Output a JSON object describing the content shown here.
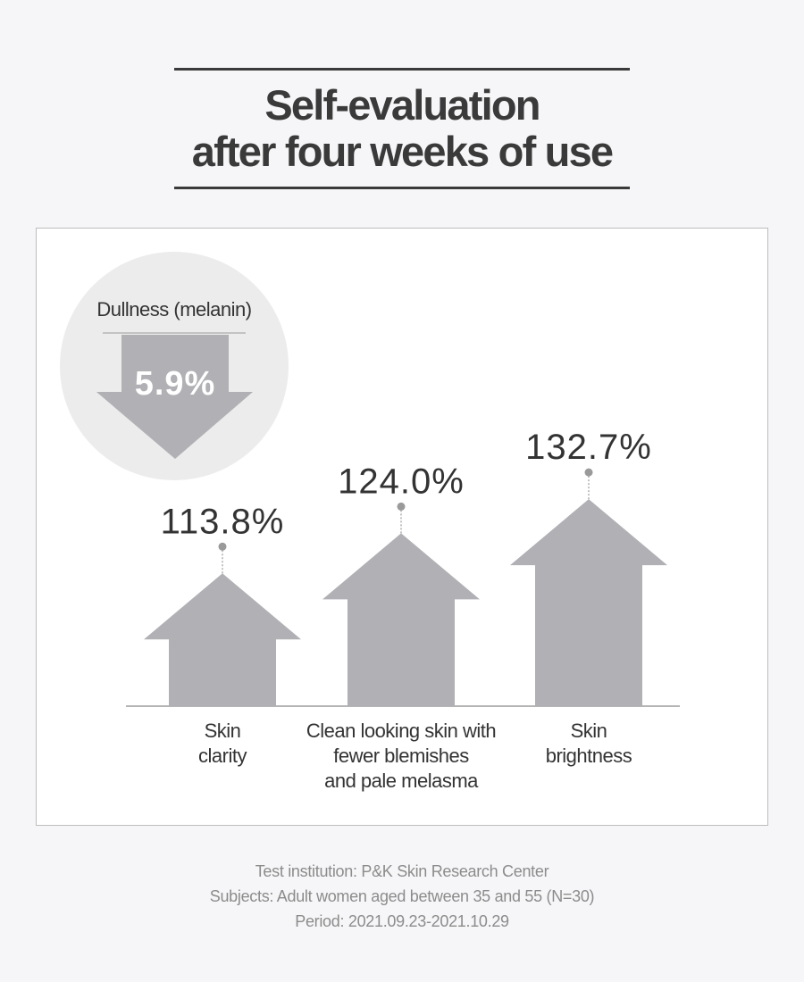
{
  "title": {
    "line1": "Self-evaluation",
    "line2": "after four weeks of use"
  },
  "colors": {
    "arrow": "#b0b0b5",
    "text": "#333333",
    "circle": "#ececec",
    "dot": "#9a9a9a",
    "baseline": "#b5b5b5"
  },
  "chart_data": {
    "type": "bar",
    "title": "Self-evaluation after four weeks of use",
    "unit": "%",
    "categories": [
      "Skin clarity",
      "Clean looking skin with fewer blemishes and pale melasma",
      "Skin brightness"
    ],
    "category_lines": [
      [
        "Skin",
        "clarity"
      ],
      [
        "Clean looking skin with",
        "fewer blemishes",
        "and pale melasma"
      ],
      [
        "Skin",
        "brightness"
      ]
    ],
    "values": [
      113.8,
      124.0,
      132.7
    ],
    "value_labels": [
      "113.8%",
      "124.0%",
      "132.7%"
    ],
    "decrease": {
      "label": "Dullness (melanin)",
      "value": 5.9,
      "value_label": "5.9%"
    }
  },
  "footer": {
    "institution": "Test institution: P&K Skin Research Center",
    "subjects": "Subjects: Adult women aged between 35 and 55 (N=30)",
    "period": "Period: 2021.09.23-2021.10.29"
  }
}
